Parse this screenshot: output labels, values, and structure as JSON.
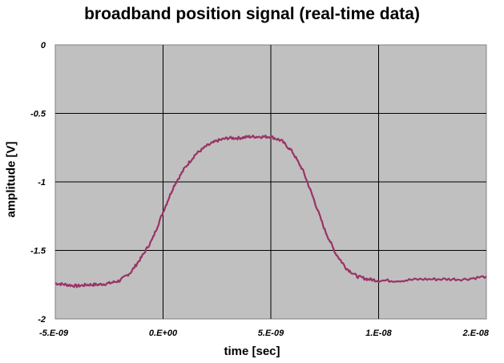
{
  "chart_data": {
    "type": "line",
    "title": "broadband position signal (real-time data)",
    "xlabel": "time [sec]",
    "ylabel": "amplitude [V]",
    "xlim": [
      -5e-09,
      1.5e-08
    ],
    "ylim": [
      -2,
      0
    ],
    "x_tick_labels": [
      "-5.E-09",
      "0.E+00",
      "5.E-09",
      "1.E-08",
      "2.E-08"
    ],
    "y_tick_labels": [
      "0",
      "-0.5",
      "-1",
      "-1.5",
      "-2"
    ],
    "grid": true,
    "legend": "none",
    "colors": {
      "plot_background": "#c0c0c0",
      "line": "#993366",
      "grid": "#000000"
    },
    "series": [
      {
        "x": [
          -5e-09,
          -4.5e-09,
          -4e-09,
          -3.5e-09,
          -3e-09,
          -2.5e-09,
          -2e-09,
          -1.5e-09,
          -1e-09,
          -5e-10,
          0,
          5e-10,
          1e-09,
          1.5e-09,
          2e-09,
          2.5e-09,
          3e-09,
          3.5e-09,
          4e-09,
          4.5e-09,
          5e-09,
          5.5e-09,
          6e-09,
          6.5e-09,
          7e-09,
          7.5e-09,
          8e-09,
          8.5e-09,
          9e-09,
          9.5e-09,
          1e-08,
          1.1e-08,
          1.2e-08,
          1.3e-08,
          1.4e-08,
          1.5e-08
        ],
        "y": [
          -1.74,
          -1.75,
          -1.76,
          -1.75,
          -1.75,
          -1.74,
          -1.72,
          -1.66,
          -1.55,
          -1.42,
          -1.22,
          -1.03,
          -0.9,
          -0.8,
          -0.74,
          -0.7,
          -0.68,
          -0.68,
          -0.67,
          -0.67,
          -0.67,
          -0.7,
          -0.78,
          -0.92,
          -1.13,
          -1.35,
          -1.52,
          -1.63,
          -1.69,
          -1.71,
          -1.72,
          -1.72,
          -1.71,
          -1.71,
          -1.71,
          -1.69
        ]
      }
    ]
  }
}
